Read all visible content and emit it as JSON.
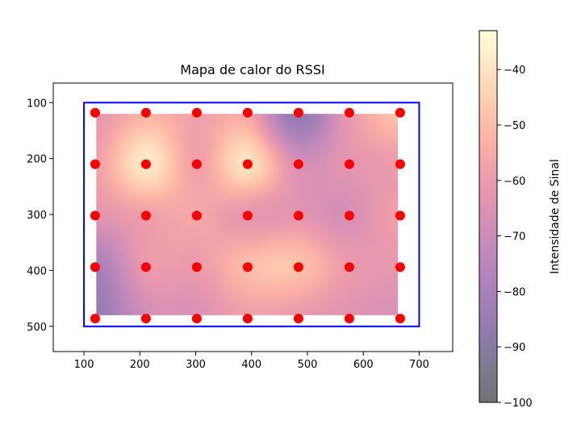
{
  "chart_data": {
    "type": "heatmap",
    "title": "Mapa de calor do RSSI",
    "xlabel": "",
    "ylabel": "",
    "xlim": [
      45,
      760
    ],
    "ylim": [
      545,
      65
    ],
    "y_inverted": true,
    "xticks": [
      100,
      200,
      300,
      400,
      500,
      600,
      700
    ],
    "yticks": [
      100,
      200,
      300,
      400,
      500
    ],
    "grid": false,
    "colormap": "magma",
    "colormap_alpha": 0.55,
    "heatmap_extent": {
      "x": [
        122,
        662
      ],
      "y": [
        120,
        480
      ]
    },
    "grid_x": [
      122,
      212,
      302,
      392,
      482,
      572,
      662
    ],
    "grid_y": [
      120,
      210,
      300,
      390,
      480
    ],
    "rssi_values": [
      [
        -62,
        -52,
        -58,
        -56,
        -88,
        -62,
        -48
      ],
      [
        -58,
        -38,
        -58,
        -40,
        -66,
        -63,
        -60
      ],
      [
        -63,
        -58,
        -56,
        -62,
        -63,
        -67,
        -58
      ],
      [
        -80,
        -60,
        -60,
        -50,
        -48,
        -60,
        -62
      ],
      [
        -86,
        -68,
        -66,
        -58,
        -60,
        -64,
        -66
      ]
    ],
    "boundary": {
      "color": "#0000ff",
      "x": [
        100,
        700
      ],
      "y": [
        100,
        500
      ]
    },
    "points": {
      "color": "#ff0000",
      "x": [
        120,
        211,
        302,
        393,
        484,
        575,
        666
      ],
      "y": [
        118,
        210,
        302,
        394,
        486
      ]
    },
    "colorbar": {
      "label": "Intensidade de Sinal",
      "range": [
        -100,
        -33
      ],
      "ticks": [
        -40,
        -50,
        -60,
        -70,
        -80,
        -90,
        -100
      ],
      "tick_labels": [
        "−40",
        "−50",
        "−60",
        "−70",
        "−80",
        "−90",
        "−100"
      ]
    }
  }
}
